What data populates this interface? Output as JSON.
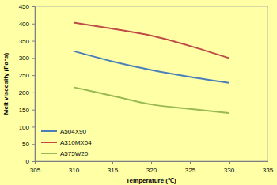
{
  "chart_data": {
    "type": "line",
    "x_label": "Temperature (℃)",
    "y_label": "Melt viscosity (Pa･s)",
    "x": [
      310,
      315,
      320,
      325,
      330
    ],
    "series": [
      {
        "name": "A504X90",
        "color": "#4a7ebb",
        "values": [
          320,
          290,
          265,
          245,
          228
        ]
      },
      {
        "name": "A310MX04",
        "color": "#be4b48",
        "values": [
          403,
          385,
          365,
          335,
          300
        ]
      },
      {
        "name": "A575W20",
        "color": "#98b954",
        "values": [
          215,
          190,
          165,
          152,
          140
        ]
      }
    ],
    "xlim": [
      305,
      335
    ],
    "xticks": [
      305,
      310,
      315,
      320,
      325,
      330,
      335
    ],
    "ylim": [
      0,
      450
    ],
    "yticks": [
      0,
      50,
      100,
      150,
      200,
      250,
      300,
      350,
      400,
      450
    ],
    "grid": false,
    "legend": "lower left"
  }
}
